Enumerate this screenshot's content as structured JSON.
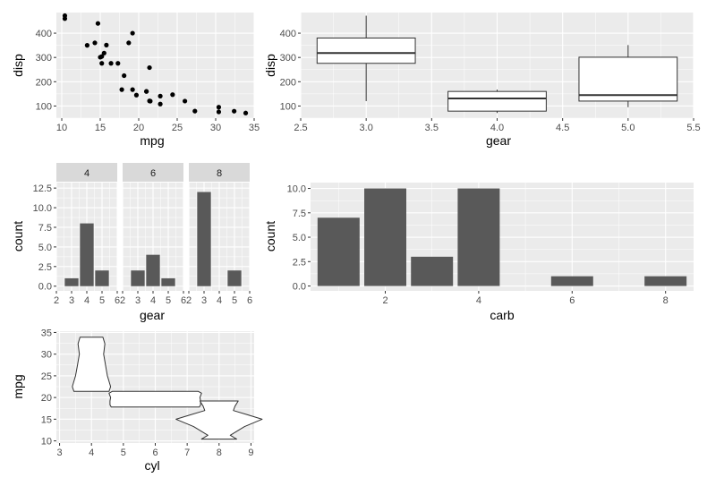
{
  "chart_data": [
    {
      "id": "scatter",
      "type": "scatter",
      "xlabel": "mpg",
      "ylabel": "disp",
      "xlim": [
        9.3,
        35
      ],
      "ylim": [
        50,
        485
      ],
      "x_ticks": [
        10,
        15,
        20,
        25,
        30,
        35
      ],
      "y_ticks": [
        100,
        200,
        300,
        400
      ],
      "point_color": "#000000",
      "points": [
        [
          21.0,
          160
        ],
        [
          21.0,
          160
        ],
        [
          22.8,
          108
        ],
        [
          21.4,
          258
        ],
        [
          18.7,
          360
        ],
        [
          18.1,
          225
        ],
        [
          14.3,
          360
        ],
        [
          24.4,
          146.7
        ],
        [
          22.8,
          140.8
        ],
        [
          19.2,
          167.6
        ],
        [
          17.8,
          167.6
        ],
        [
          16.4,
          275.8
        ],
        [
          17.3,
          275.8
        ],
        [
          15.2,
          275.8
        ],
        [
          10.4,
          472
        ],
        [
          10.4,
          460
        ],
        [
          14.7,
          440
        ],
        [
          32.4,
          78.7
        ],
        [
          30.4,
          75.7
        ],
        [
          33.9,
          71.1
        ],
        [
          21.5,
          120.1
        ],
        [
          15.5,
          318
        ],
        [
          15.2,
          304
        ],
        [
          13.3,
          350
        ],
        [
          19.2,
          400
        ],
        [
          27.3,
          79
        ],
        [
          26.0,
          120.3
        ],
        [
          30.4,
          95.1
        ],
        [
          15.8,
          351
        ],
        [
          19.7,
          145
        ],
        [
          15.0,
          301
        ],
        [
          21.4,
          121
        ]
      ]
    },
    {
      "id": "boxplot",
      "type": "box",
      "xlabel": "gear",
      "ylabel": "disp",
      "xlim": [
        2.5,
        5.5
      ],
      "ylim": [
        50,
        485
      ],
      "x_ticks": [
        "2.5",
        "3.0",
        "3.5",
        "4.0",
        "4.5",
        "5.0",
        "5.5"
      ],
      "y_ticks": [
        100,
        200,
        300,
        400
      ],
      "boxes": [
        {
          "x": 3,
          "min": 120.1,
          "q1": 275.8,
          "median": 318,
          "q3": 380,
          "max": 472
        },
        {
          "x": 4,
          "min": 71.1,
          "q1": 78.9,
          "median": 130.9,
          "q3": 160,
          "max": 167.6
        },
        {
          "x": 5,
          "min": 95.1,
          "q1": 120.3,
          "median": 145,
          "q3": 301,
          "max": 351
        }
      ]
    },
    {
      "id": "facet_bars",
      "type": "bar",
      "xlabel": "gear",
      "ylabel": "count",
      "xlim": [
        2,
        6
      ],
      "ylim": [
        -0.6,
        13.2
      ],
      "x_ticks": [
        "2",
        "3",
        "4",
        "5",
        "6"
      ],
      "y_ticks": [
        "0.0",
        "2.5",
        "5.0",
        "7.5",
        "10.0",
        "12.5"
      ],
      "bar_color": "#595959",
      "strip_color": "#d9d9d9",
      "panels": [
        {
          "label": "4",
          "categories": [
            3,
            4,
            5
          ],
          "values": [
            1,
            8,
            2
          ]
        },
        {
          "label": "6",
          "categories": [
            3,
            4,
            5
          ],
          "values": [
            2,
            4,
            1
          ]
        },
        {
          "label": "8",
          "categories": [
            3,
            4,
            5
          ],
          "values": [
            12,
            0,
            2
          ]
        }
      ]
    },
    {
      "id": "carb_bars",
      "type": "bar",
      "xlabel": "carb",
      "ylabel": "count",
      "xlim": [
        0.4,
        8.6
      ],
      "ylim": [
        -0.5,
        10.6
      ],
      "x_ticks": [
        2,
        4,
        6,
        8
      ],
      "y_ticks": [
        "0.0",
        "2.5",
        "5.0",
        "7.5",
        "10.0"
      ],
      "bar_color": "#595959",
      "categories": [
        1,
        2,
        3,
        4,
        6,
        8
      ],
      "values": [
        7,
        10,
        3,
        10,
        1,
        1
      ]
    },
    {
      "id": "violin",
      "type": "violin",
      "xlabel": "cyl",
      "ylabel": "mpg",
      "xlim": [
        2.9,
        9.1
      ],
      "ylim": [
        9.5,
        35.3
      ],
      "x_ticks": [
        3,
        4,
        5,
        6,
        7,
        8,
        9
      ],
      "y_ticks": [
        10,
        15,
        20,
        25,
        30,
        35
      ],
      "violins": [
        {
          "x": 4,
          "profile": [
            [
              21.4,
              0.55
            ],
            [
              22.5,
              0.6
            ],
            [
              25.0,
              0.5
            ],
            [
              27.0,
              0.45
            ],
            [
              30.0,
              0.38
            ],
            [
              32.4,
              0.42
            ],
            [
              33.9,
              0.36
            ]
          ]
        },
        {
          "x": 6,
          "profile": [
            [
              17.8,
              1.38
            ],
            [
              18.3,
              1.42
            ],
            [
              19.2,
              1.42
            ],
            [
              20.0,
              1.4
            ],
            [
              21.0,
              1.45
            ],
            [
              21.4,
              1.35
            ]
          ]
        },
        {
          "x": 8,
          "profile": [
            [
              10.4,
              0.55
            ],
            [
              11.3,
              0.35
            ],
            [
              13.3,
              0.8
            ],
            [
              15.0,
              1.35
            ],
            [
              16.0,
              0.9
            ],
            [
              17.0,
              0.45
            ],
            [
              18.0,
              0.5
            ],
            [
              19.2,
              0.6
            ]
          ]
        }
      ]
    }
  ]
}
